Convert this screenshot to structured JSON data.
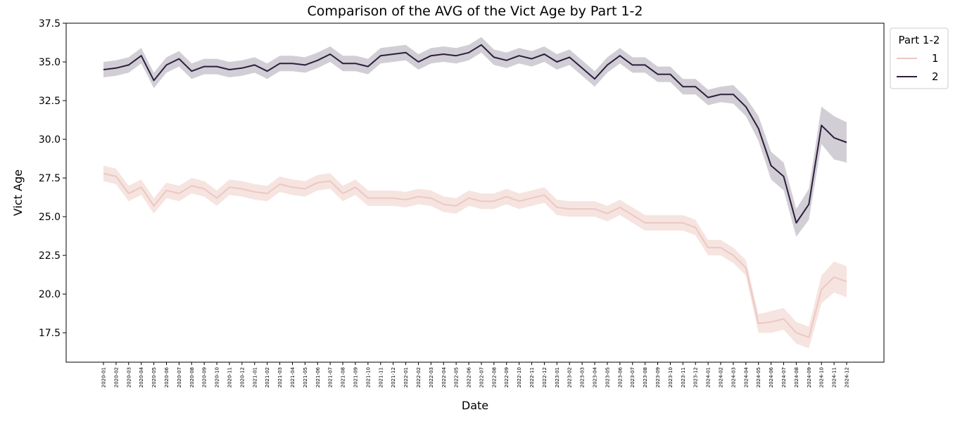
{
  "chart_data": {
    "type": "line",
    "title": "Comparison of the AVG of the Vict Age by Part 1-2",
    "xlabel": "Date",
    "ylabel": "Vict Age",
    "ylim": [
      15.6,
      37.5
    ],
    "yticks": [
      17.5,
      20.0,
      22.5,
      25.0,
      27.5,
      30.0,
      32.5,
      35.0,
      37.5
    ],
    "ytick_labels": [
      "17.5",
      "20.0",
      "22.5",
      "25.0",
      "27.5",
      "30.0",
      "32.5",
      "35.0",
      "37.5"
    ],
    "grid": false,
    "legend": {
      "title": "Part 1-2",
      "placement": "outside-top-right",
      "entries": [
        "1",
        "2"
      ]
    },
    "categories": [
      "2020-01",
      "2020-02",
      "2020-03",
      "2020-04",
      "2020-05",
      "2020-06",
      "2020-07",
      "2020-08",
      "2020-09",
      "2020-10",
      "2020-11",
      "2020-12",
      "2021-01",
      "2021-02",
      "2021-03",
      "2021-04",
      "2021-05",
      "2021-06",
      "2021-07",
      "2021-08",
      "2021-09",
      "2021-10",
      "2021-11",
      "2021-12",
      "2022-01",
      "2022-02",
      "2022-03",
      "2022-04",
      "2022-05",
      "2022-06",
      "2022-07",
      "2022-08",
      "2022-09",
      "2022-10",
      "2022-11",
      "2022-12",
      "2023-01",
      "2023-02",
      "2023-03",
      "2023-04",
      "2023-05",
      "2023-06",
      "2023-07",
      "2023-08",
      "2023-09",
      "2023-10",
      "2023-11",
      "2023-12",
      "2024-01",
      "2024-02",
      "2024-03",
      "2024-04",
      "2024-05",
      "2024-06",
      "2024-07",
      "2024-08",
      "2024-09",
      "2024-10",
      "2024-11",
      "2024-12"
    ],
    "series": [
      {
        "name": "1",
        "color": "#ecc8c3",
        "band_color": "#f4dfdb",
        "values": [
          27.8,
          27.6,
          26.5,
          26.9,
          25.7,
          26.7,
          26.5,
          27.0,
          26.8,
          26.2,
          26.9,
          26.8,
          26.6,
          26.5,
          27.1,
          26.9,
          26.8,
          27.2,
          27.3,
          26.5,
          26.9,
          26.2,
          26.2,
          26.2,
          26.1,
          26.3,
          26.2,
          25.8,
          25.7,
          26.2,
          26.0,
          26.0,
          26.3,
          26.0,
          26.2,
          26.4,
          25.6,
          25.5,
          25.5,
          25.5,
          25.2,
          25.6,
          25.1,
          24.6,
          24.6,
          24.6,
          24.6,
          24.3,
          23.0,
          23.0,
          22.5,
          21.7,
          18.1,
          18.2,
          18.4,
          17.5,
          17.2,
          20.3,
          21.1,
          20.8
        ],
        "ci_half_width": [
          0.5,
          0.5,
          0.5,
          0.5,
          0.5,
          0.5,
          0.5,
          0.5,
          0.5,
          0.5,
          0.5,
          0.5,
          0.5,
          0.5,
          0.5,
          0.5,
          0.5,
          0.5,
          0.5,
          0.5,
          0.5,
          0.5,
          0.5,
          0.5,
          0.5,
          0.5,
          0.5,
          0.5,
          0.5,
          0.5,
          0.5,
          0.5,
          0.5,
          0.5,
          0.5,
          0.5,
          0.5,
          0.5,
          0.5,
          0.5,
          0.5,
          0.5,
          0.5,
          0.5,
          0.5,
          0.5,
          0.5,
          0.5,
          0.5,
          0.5,
          0.5,
          0.5,
          0.6,
          0.7,
          0.7,
          0.7,
          0.7,
          0.9,
          1.0,
          1.0
        ]
      },
      {
        "name": "2",
        "color": "#2d1e3e",
        "band_color": "#c9c5ce",
        "values": [
          34.5,
          34.6,
          34.8,
          35.4,
          33.8,
          34.8,
          35.2,
          34.4,
          34.7,
          34.7,
          34.5,
          34.6,
          34.8,
          34.4,
          34.9,
          34.9,
          34.8,
          35.1,
          35.5,
          34.9,
          34.9,
          34.7,
          35.4,
          35.5,
          35.6,
          35.0,
          35.4,
          35.5,
          35.4,
          35.6,
          36.1,
          35.3,
          35.1,
          35.4,
          35.2,
          35.5,
          35.0,
          35.3,
          34.6,
          33.9,
          34.8,
          35.4,
          34.8,
          34.8,
          34.2,
          34.2,
          33.4,
          33.4,
          32.7,
          32.9,
          32.9,
          32.1,
          30.7,
          28.3,
          27.6,
          24.6,
          25.8,
          30.9,
          30.1,
          29.8
        ],
        "ci_half_width": [
          0.5,
          0.5,
          0.5,
          0.5,
          0.5,
          0.5,
          0.5,
          0.5,
          0.5,
          0.5,
          0.5,
          0.5,
          0.5,
          0.5,
          0.5,
          0.5,
          0.5,
          0.5,
          0.5,
          0.5,
          0.5,
          0.5,
          0.5,
          0.5,
          0.5,
          0.5,
          0.5,
          0.5,
          0.5,
          0.5,
          0.5,
          0.5,
          0.5,
          0.5,
          0.5,
          0.5,
          0.5,
          0.5,
          0.5,
          0.5,
          0.5,
          0.5,
          0.5,
          0.5,
          0.5,
          0.5,
          0.5,
          0.5,
          0.5,
          0.5,
          0.6,
          0.6,
          0.8,
          0.9,
          0.9,
          0.9,
          1.0,
          1.2,
          1.4,
          1.3
        ]
      }
    ]
  }
}
